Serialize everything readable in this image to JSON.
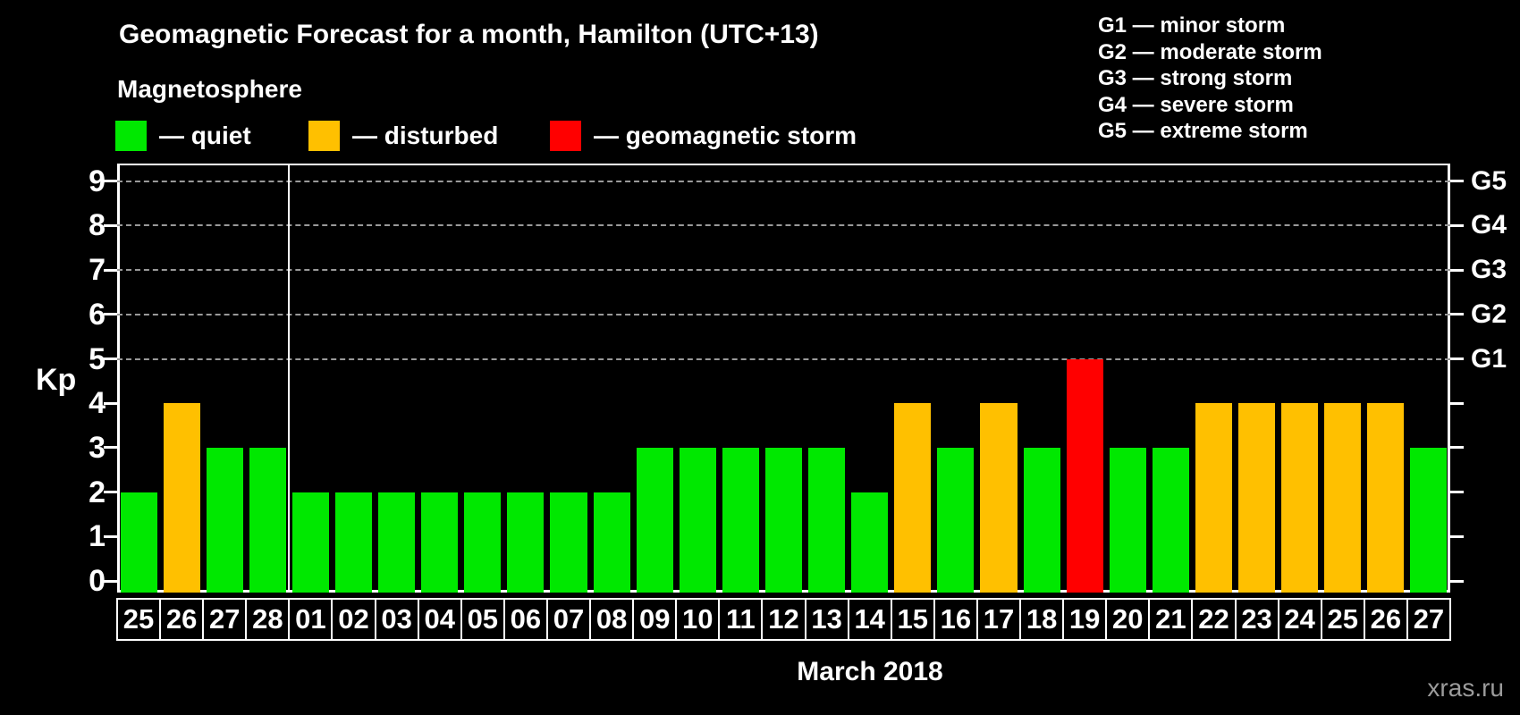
{
  "header": {
    "title": "Geomagnetic Forecast for a month, Hamilton (UTC+13)"
  },
  "magnetosphere": {
    "heading": "Magnetosphere",
    "legend": [
      {
        "label": "— quiet",
        "key": "quiet"
      },
      {
        "label": "— disturbed",
        "key": "disturbed"
      },
      {
        "label": "— geomagnetic storm",
        "key": "storm"
      }
    ]
  },
  "g_legend": {
    "items": [
      "G1 — minor storm",
      "G2 — moderate storm",
      "G3 — strong storm",
      "G4 — severe storm",
      "G5 — extreme storm"
    ]
  },
  "watermark": "xras.ru",
  "chart_data": {
    "type": "bar",
    "title": "Geomagnetic Forecast for a month, Hamilton (UTC+13)",
    "xlabel": "March 2018",
    "ylabel": "Kp",
    "ylim": [
      0,
      9
    ],
    "y_ticks": [
      0,
      1,
      2,
      3,
      4,
      5,
      6,
      7,
      8,
      9
    ],
    "grid": "dashed horizontal lines at storm levels only",
    "grid_levels": [
      5,
      6,
      7,
      8,
      9
    ],
    "right_axis": [
      {
        "value": 5,
        "label": "G1"
      },
      {
        "value": 6,
        "label": "G2"
      },
      {
        "value": 7,
        "label": "G3"
      },
      {
        "value": 8,
        "label": "G4"
      },
      {
        "value": 9,
        "label": "G5"
      }
    ],
    "month_divider_after_index": 3,
    "categories": [
      "25",
      "26",
      "27",
      "28",
      "01",
      "02",
      "03",
      "04",
      "05",
      "06",
      "07",
      "08",
      "09",
      "10",
      "11",
      "12",
      "13",
      "14",
      "15",
      "16",
      "17",
      "18",
      "19",
      "20",
      "21",
      "22",
      "23",
      "24",
      "25",
      "26",
      "27"
    ],
    "series": [
      {
        "name": "Kp forecast",
        "values": [
          2,
          4,
          3,
          3,
          2,
          2,
          2,
          2,
          2,
          2,
          2,
          2,
          3,
          3,
          3,
          3,
          3,
          2,
          4,
          3,
          4,
          3,
          5,
          3,
          3,
          4,
          4,
          4,
          4,
          4,
          3
        ]
      }
    ],
    "statuses": [
      "quiet",
      "disturbed",
      "quiet",
      "quiet",
      "quiet",
      "quiet",
      "quiet",
      "quiet",
      "quiet",
      "quiet",
      "quiet",
      "quiet",
      "quiet",
      "quiet",
      "quiet",
      "quiet",
      "quiet",
      "quiet",
      "disturbed",
      "quiet",
      "disturbed",
      "quiet",
      "storm",
      "quiet",
      "quiet",
      "disturbed",
      "disturbed",
      "disturbed",
      "disturbed",
      "disturbed",
      "quiet"
    ],
    "colors": {
      "quiet": "#00E800",
      "disturbed": "#FFC000",
      "storm": "#FF0000",
      "axis": "#FFFFFF",
      "grid": "#999999",
      "background": "#000000",
      "watermark": "#9B9B9B"
    }
  }
}
